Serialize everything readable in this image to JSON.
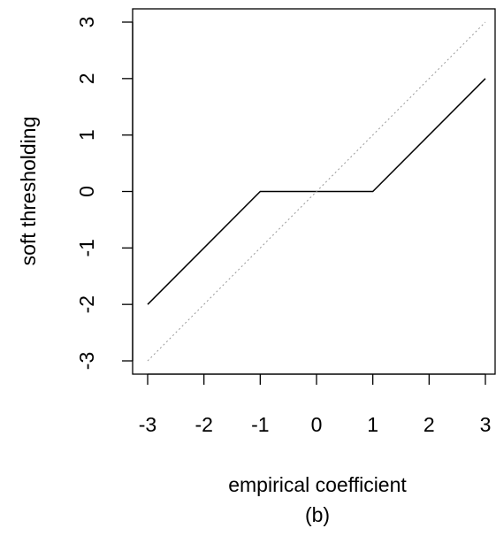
{
  "chart_data": {
    "type": "line",
    "title": "",
    "xlabel": "empirical coefficient",
    "ylabel": "soft thresholding",
    "caption": "(b)",
    "xlim": [
      -3,
      3
    ],
    "ylim": [
      -3,
      3
    ],
    "xticks": [
      -3,
      -2,
      -1,
      0,
      1,
      2,
      3
    ],
    "yticks": [
      -3,
      -2,
      -1,
      0,
      1,
      2,
      3
    ],
    "grid": false,
    "legend": "none",
    "series": [
      {
        "x": [
          -3,
          -1,
          1,
          3
        ],
        "y": [
          -2,
          0,
          0,
          2
        ],
        "color": "#000000",
        "style": "solid"
      },
      {
        "x": [
          -3,
          3
        ],
        "y": [
          -3,
          3
        ],
        "color": "#999999",
        "style": "dotted"
      }
    ]
  }
}
